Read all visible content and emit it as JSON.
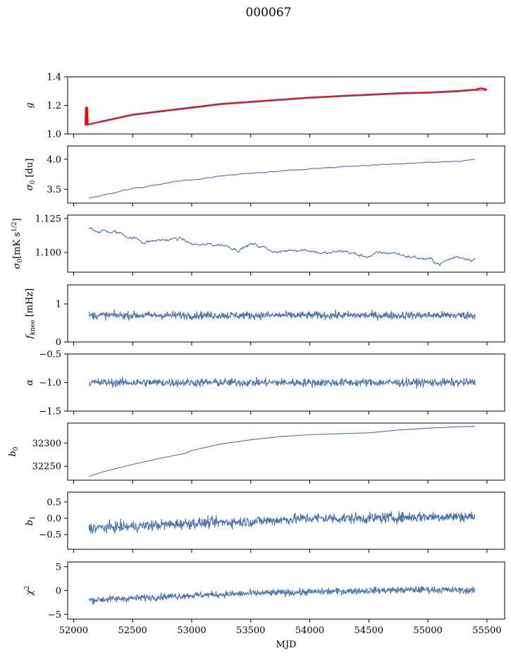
{
  "figure": {
    "title": "000067"
  },
  "chart_data": [
    {
      "type": "line",
      "ylabel_parts": [
        {
          "t": "g",
          "i": true
        }
      ],
      "xlim": [
        51950,
        55650
      ],
      "ylim": [
        1.0,
        1.4
      ],
      "yticks": [
        1.0,
        1.2,
        1.4
      ],
      "ytick_labels": [
        "1.0",
        "1.2",
        "1.4"
      ],
      "series": [
        {
          "color": "#ff0000",
          "x": [
            52100,
            52105,
            52110,
            52112,
            52115,
            52120,
            52250,
            52500,
            52750,
            53000,
            53250,
            53500,
            53750,
            54000,
            54250,
            54500,
            54750,
            55000,
            55250,
            55400,
            55450,
            55500
          ],
          "y": [
            1.06,
            1.19,
            1.07,
            1.06,
            1.19,
            1.065,
            1.09,
            1.135,
            1.16,
            1.185,
            1.21,
            1.225,
            1.24,
            1.255,
            1.265,
            1.275,
            1.285,
            1.29,
            1.3,
            1.31,
            1.32,
            1.31
          ]
        },
        {
          "color": "#4c72b0",
          "x": [
            52100,
            52250,
            52500,
            52750,
            53000,
            53250,
            53500,
            53750,
            54000,
            54250,
            54500,
            54750,
            55000,
            55250,
            55400,
            55500
          ],
          "y": [
            1.065,
            1.085,
            1.13,
            1.155,
            1.18,
            1.205,
            1.22,
            1.235,
            1.25,
            1.26,
            1.27,
            1.28,
            1.285,
            1.295,
            1.305,
            1.305
          ]
        }
      ]
    },
    {
      "type": "line",
      "ylabel_parts": [
        {
          "t": "σ",
          "i": true
        },
        {
          "t": "0",
          "sub": true
        },
        {
          "t": " [du]"
        }
      ],
      "xlim": [
        51950,
        55650
      ],
      "ylim": [
        3.27,
        4.22
      ],
      "yticks": [
        3.5,
        4.0
      ],
      "ytick_labels": [
        "3.5",
        "4.0"
      ],
      "series": [
        {
          "color": "#4c72b0",
          "x": [
            52130,
            52250,
            52500,
            52750,
            53000,
            53250,
            53500,
            53750,
            54000,
            54250,
            54500,
            54750,
            55000,
            55250,
            55400
          ],
          "y": [
            3.35,
            3.4,
            3.51,
            3.59,
            3.66,
            3.72,
            3.77,
            3.8,
            3.84,
            3.87,
            3.9,
            3.92,
            3.94,
            3.96,
            3.99
          ],
          "noise": 0.004
        }
      ]
    },
    {
      "type": "line",
      "ylabel_parts": [
        {
          "t": "σ",
          "i": true
        },
        {
          "t": "0",
          "sub": true
        },
        {
          "t": "[mK s"
        },
        {
          "t": "1/2",
          "sup": true
        },
        {
          "t": "]"
        }
      ],
      "xlim": [
        51950,
        55650
      ],
      "ylim": [
        1.0855,
        1.1275
      ],
      "yticks": [
        1.1,
        1.125
      ],
      "ytick_labels": [
        "1.100",
        "1.125"
      ],
      "series": [
        {
          "color": "#4c72b0",
          "x": [
            52130,
            52250,
            52400,
            52600,
            52750,
            52900,
            53000,
            53100,
            53250,
            53400,
            53500,
            53600,
            53750,
            53900,
            54000,
            54150,
            54300,
            54450,
            54600,
            54700,
            54850,
            55000,
            55100,
            55250,
            55400
          ],
          "y": [
            1.118,
            1.116,
            1.114,
            1.108,
            1.109,
            1.11,
            1.106,
            1.105,
            1.106,
            1.103,
            1.106,
            1.104,
            1.1,
            1.103,
            1.102,
            1.099,
            1.101,
            1.097,
            1.099,
            1.1,
            1.097,
            1.095,
            1.092,
            1.097,
            1.096
          ],
          "noise": 0.0008
        }
      ]
    },
    {
      "type": "line",
      "ylabel_parts": [
        {
          "t": "f",
          "i": true
        },
        {
          "t": "knee",
          "sub": true
        },
        {
          "t": " [mHz]"
        }
      ],
      "xlim": [
        51950,
        55650
      ],
      "ylim": [
        0,
        1.5
      ],
      "yticks": [
        0,
        1
      ],
      "ytick_labels": [
        "0",
        "1"
      ],
      "series": [
        {
          "color": "#4c72b0",
          "x": [
            52130,
            55400
          ],
          "y": [
            0.7,
            0.7
          ],
          "noise": 0.1,
          "points": 900
        }
      ]
    },
    {
      "type": "line",
      "ylabel_parts": [
        {
          "t": "α",
          "i": true
        }
      ],
      "xlim": [
        51950,
        55650
      ],
      "ylim": [
        -1.5,
        -0.5
      ],
      "yticks": [
        -1.5,
        -1.0,
        -0.5
      ],
      "ytick_labels": [
        "−1.5",
        "−1.0",
        "−0.5"
      ],
      "series": [
        {
          "color": "#4c72b0",
          "x": [
            52130,
            55400
          ],
          "y": [
            -1.0,
            -1.0
          ],
          "noise": 0.07,
          "points": 900
        }
      ]
    },
    {
      "type": "line",
      "ylabel_parts": [
        {
          "t": "b",
          "i": true
        },
        {
          "t": "0",
          "sub": true
        }
      ],
      "xlim": [
        51950,
        55650
      ],
      "ylim": [
        32220,
        32343
      ],
      "yticks": [
        32250,
        32300
      ],
      "ytick_labels": [
        "32250",
        "32300"
      ],
      "series": [
        {
          "color": "#4c72b0",
          "x": [
            52130,
            52250,
            52500,
            52750,
            52950,
            53000,
            53250,
            53500,
            53750,
            54000,
            54250,
            54500,
            54750,
            55000,
            55250,
            55400
          ],
          "y": [
            32228,
            32238,
            32254,
            32268,
            32278,
            32284,
            32298,
            32307,
            32314,
            32318,
            32320,
            32322,
            32328,
            32332,
            32335,
            32336
          ]
        }
      ]
    },
    {
      "type": "line",
      "ylabel_parts": [
        {
          "t": "b",
          "i": true
        },
        {
          "t": "1",
          "sub": true
        }
      ],
      "xlim": [
        51950,
        55650
      ],
      "ylim": [
        -0.95,
        0.8
      ],
      "yticks": [
        -0.5,
        0.0,
        0.5
      ],
      "ytick_labels": [
        "−0.5",
        "0.0",
        "0.5"
      ],
      "series": [
        {
          "color": "#4c72b0",
          "x": [
            52130,
            52500,
            53000,
            53500,
            54000,
            54500,
            55000,
            55400
          ],
          "y": [
            -0.3,
            -0.25,
            -0.15,
            -0.1,
            0.0,
            0.0,
            0.05,
            0.05
          ],
          "noise": 0.16,
          "points": 900
        }
      ]
    },
    {
      "type": "line",
      "ylabel_parts": [
        {
          "t": "χ",
          "i": true
        },
        {
          "t": "2",
          "sup": true
        }
      ],
      "xlabel": "MJD",
      "xlim": [
        51950,
        55650
      ],
      "ylim": [
        -6,
        6
      ],
      "yticks": [
        -5,
        0,
        5
      ],
      "ytick_labels": [
        "−5",
        "0",
        "5"
      ],
      "xticks": [
        52000,
        52500,
        53000,
        53500,
        54000,
        54500,
        55000,
        55500
      ],
      "xtick_labels": [
        "52000",
        "52500",
        "53000",
        "53500",
        "54000",
        "54500",
        "55000",
        "55500"
      ],
      "series": [
        {
          "color": "#4c72b0",
          "x": [
            52130,
            52500,
            53000,
            53500,
            54000,
            54500,
            55000,
            55400
          ],
          "y": [
            -2.0,
            -1.6,
            -1.0,
            -0.6,
            -0.3,
            0.0,
            0.2,
            0.0
          ],
          "noise": 0.7,
          "points": 900
        }
      ]
    }
  ]
}
